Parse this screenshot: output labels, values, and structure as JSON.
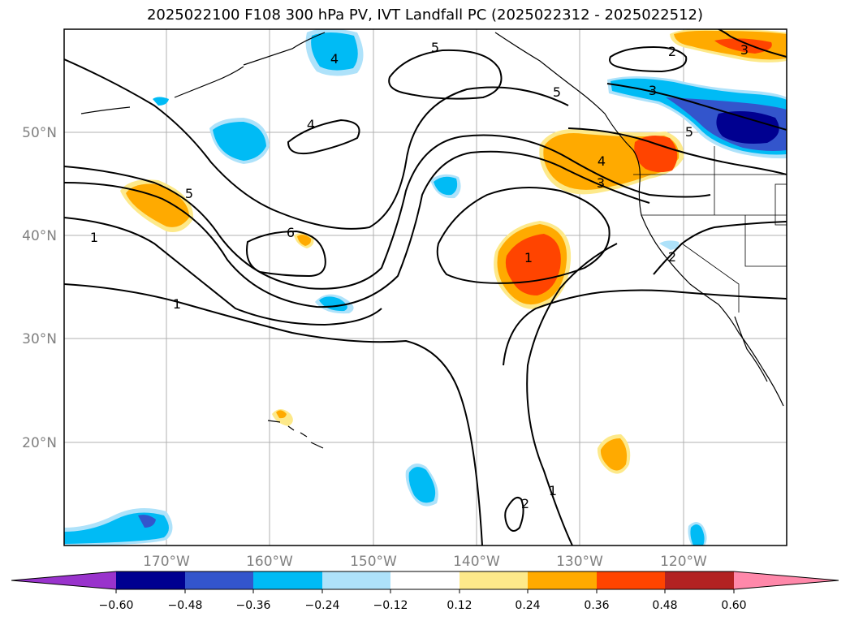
{
  "title": "2025022100 F108 300 hPa PV, IVT Landfall PC (2025022312 - 2025022512)",
  "axes": {
    "lat_labels": [
      "50°N",
      "40°N",
      "30°N",
      "20°N"
    ],
    "lon_labels": [
      "170°W",
      "160°W",
      "150°W",
      "140°W",
      "130°W",
      "120°W"
    ]
  },
  "contour_labels": [
    "1",
    "1",
    "1",
    "2",
    "2",
    "2",
    "3",
    "3",
    "3",
    "4",
    "4",
    "4",
    "5",
    "5",
    "5",
    "5",
    "6",
    "1"
  ],
  "colorbar": {
    "ticks": [
      "−0.60",
      "−0.48",
      "−0.36",
      "−0.24",
      "−0.12",
      "0.12",
      "0.24",
      "0.36",
      "0.48",
      "0.60"
    ],
    "colors": [
      "#9933cc",
      "#000090",
      "#3355cc",
      "#00bbf5",
      "#aee2fa",
      "#ffffff",
      "#fde98a",
      "#ffaa00",
      "#ff4400",
      "#b22222",
      "#ff88aa"
    ]
  },
  "colors": {
    "ocean": "#ffffff",
    "grid": "#b0b0b0",
    "coast": "#000000",
    "pos1": "#fde98a",
    "pos2": "#ffaa00",
    "pos3": "#ff4400",
    "neg1": "#aee2fa",
    "neg2": "#00bbf5",
    "neg3": "#3355cc",
    "neg4": "#000090"
  }
}
